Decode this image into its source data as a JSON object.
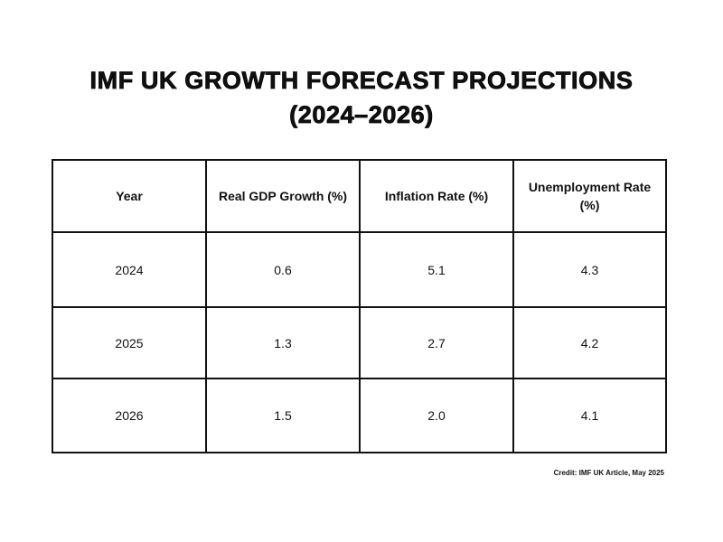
{
  "chart_data": {
    "type": "table",
    "title_line1": "IMF UK GROWTH FORECAST PROJECTIONS",
    "title_line2": "(2024–2026)",
    "columns": [
      "Year",
      "Real GDP Growth (%)",
      "Inflation Rate (%)",
      "Unemployment Rate (%)"
    ],
    "rows": [
      [
        "2024",
        "0.6",
        "5.1",
        "4.3"
      ],
      [
        "2025",
        "1.3",
        "2.7",
        "4.2"
      ],
      [
        "2026",
        "1.5",
        "2.0",
        "4.1"
      ]
    ],
    "credit": "Credit: IMF UK Article, May 2025"
  }
}
